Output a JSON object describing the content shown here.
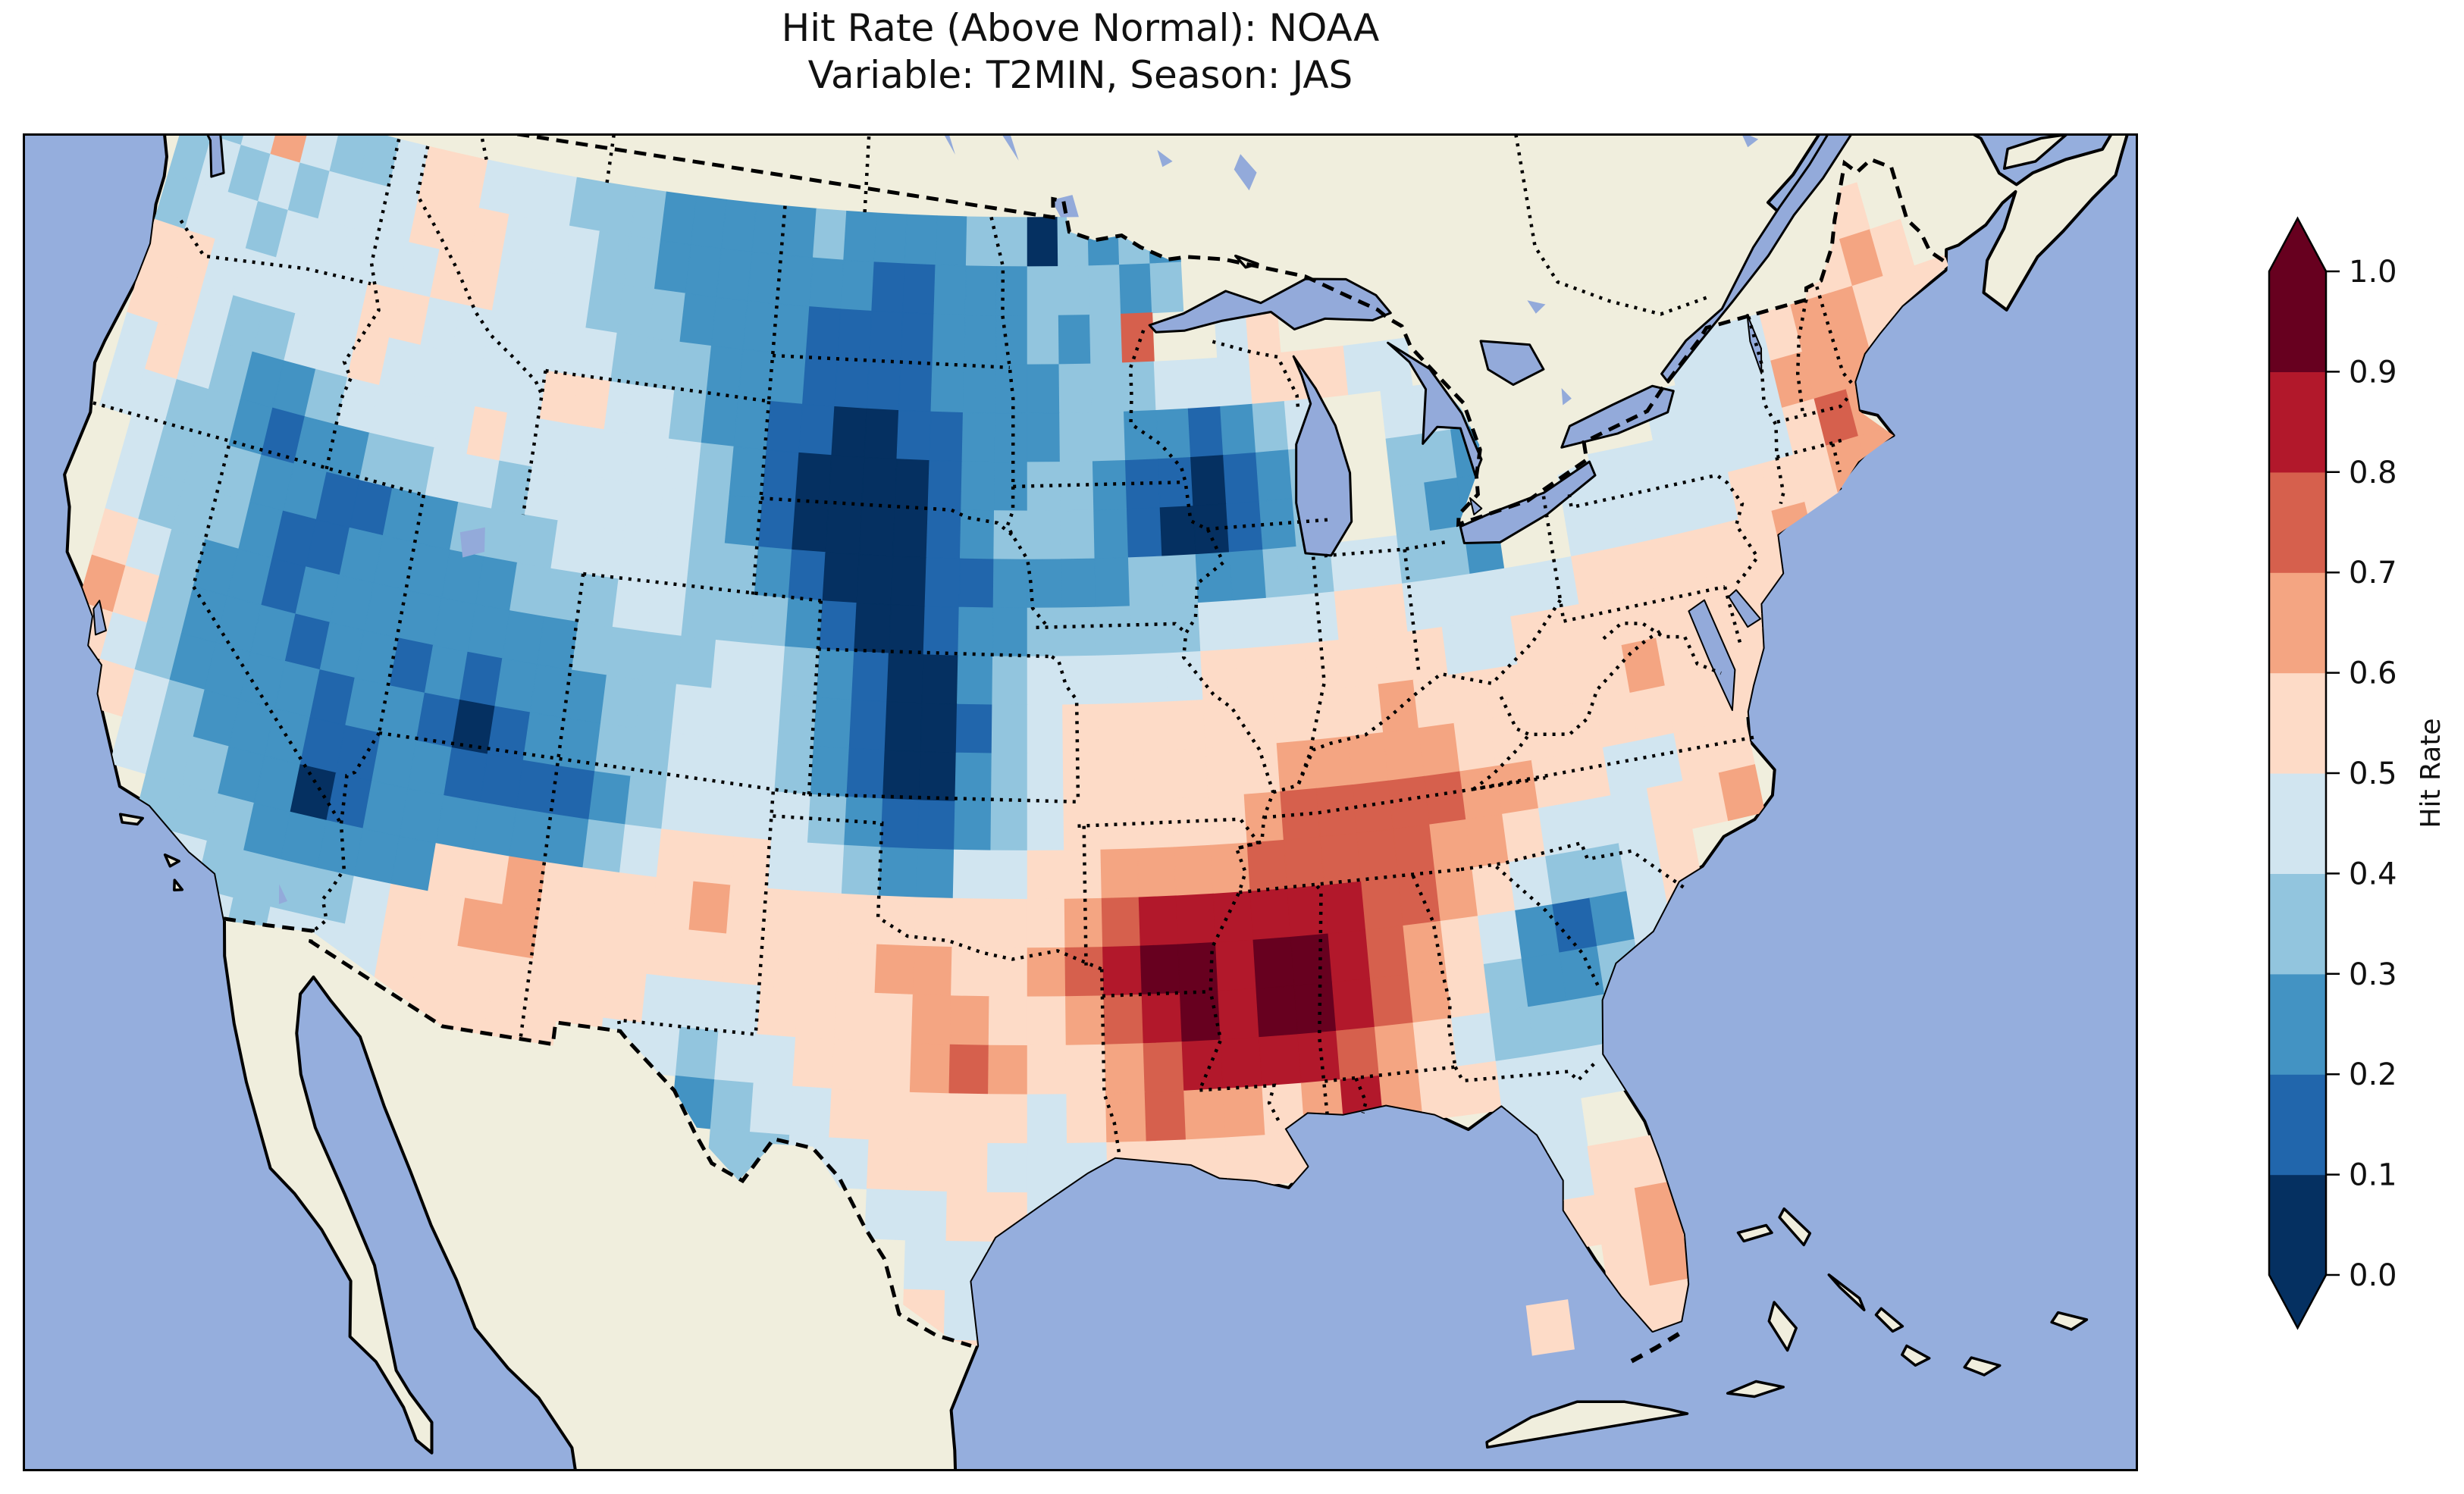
{
  "title": {
    "line1": "Hit Rate (Above Normal): NOAA",
    "line2": "Variable: T2MIN, Season: JAS"
  },
  "colorbar": {
    "label": "Hit Rate",
    "ticks": [
      "0.0",
      "0.1",
      "0.2",
      "0.3",
      "0.4",
      "0.5",
      "0.6",
      "0.7",
      "0.8",
      "0.9",
      "1.0"
    ],
    "bin_colors_low_to_high": [
      "#053061",
      "#2166ac",
      "#4393c3",
      "#92c5de",
      "#d1e5f0",
      "#fddbc7",
      "#f4a582",
      "#d6604d",
      "#b2182b",
      "#67001f"
    ],
    "extend": "both",
    "extend_low_color": "#053061",
    "extend_high_color": "#67001f"
  },
  "map_style": {
    "ocean_color": "#95aedd",
    "land_color": "#f0eedd",
    "lake_color": "#93aada",
    "coast_color": "#000000",
    "frame_color": "#000000"
  },
  "chart_data": {
    "type": "heatmap",
    "title": "Hit Rate (Above Normal): NOAA",
    "subtitle": "Variable: T2MIN, Season: JAS",
    "metric": "Hit Rate (Above Normal)",
    "source": "NOAA",
    "variable": "T2MIN",
    "season": "JAS",
    "region": "Contiguous United States",
    "colormap": "RdBu_r, 10 discrete bins",
    "value_range": [
      0.0,
      1.0
    ],
    "bin_edges": [
      0.0,
      0.1,
      0.2,
      0.3,
      0.4,
      0.5,
      0.6,
      0.7,
      0.8,
      0.9,
      1.0
    ],
    "colorbar_label": "Hit Rate",
    "grid": {
      "lon_min": -125,
      "lon_step": 1,
      "n_cols": 58,
      "lat_max": 49,
      "lat_step": 1,
      "n_rows": 24,
      "encoding": "one character per 1x1 degree cell, row 0 = 49N..48N; digit d means hit rate in bin [d/10,(d+1)/10); '.' = no data (outside US)",
      "rows": [
        ".43464334554443332222232222330323 2.......................",
        ".343434445554443322222221122233323........................",
        ".3443444445544433322221111222 3237..45................ .55",
        ".5544444554444443332221111222233344455544........444555 65",
        ".554334454444455443221100112223322123 4..4433.....444566555",
        ".45432234444544444432100001223321101 23..3323....444466655.",
        ".4433212233443444443210000123332100123..322..44444445766..",
        "..433322112233344443321000112222332233443 32..4444455566...",
        "..4333211222223334433321001223333344445544444555555 65.....",
        "..543221222222223333443210023444445555555445555555556......",
        "..65322212212122233444321001345555555556555555655555.......",
        "..54322221221012233444321002345555556666655555555 5........",
        "...54322211221111234444321123455555677777665544 55.........",
        "....433220122222234555443224455666677777665444556..........",
        ".....333222225565555655555555567888888776543345............",
        "......433334556655555555566556789989987654212 45...........",
        ".......4344455555554445555665567898998765322 34............",
        "............555555443445556765567888876543333..............",
        "....................2344555554567665686554444..............",
        ".....................334455544455555.....44................",
        ".........................44554............455..............",
        "..........................444.............556..............",
        "..........................544..............565.............",
        "...........................55...........55.55.............."
      ]
    }
  }
}
